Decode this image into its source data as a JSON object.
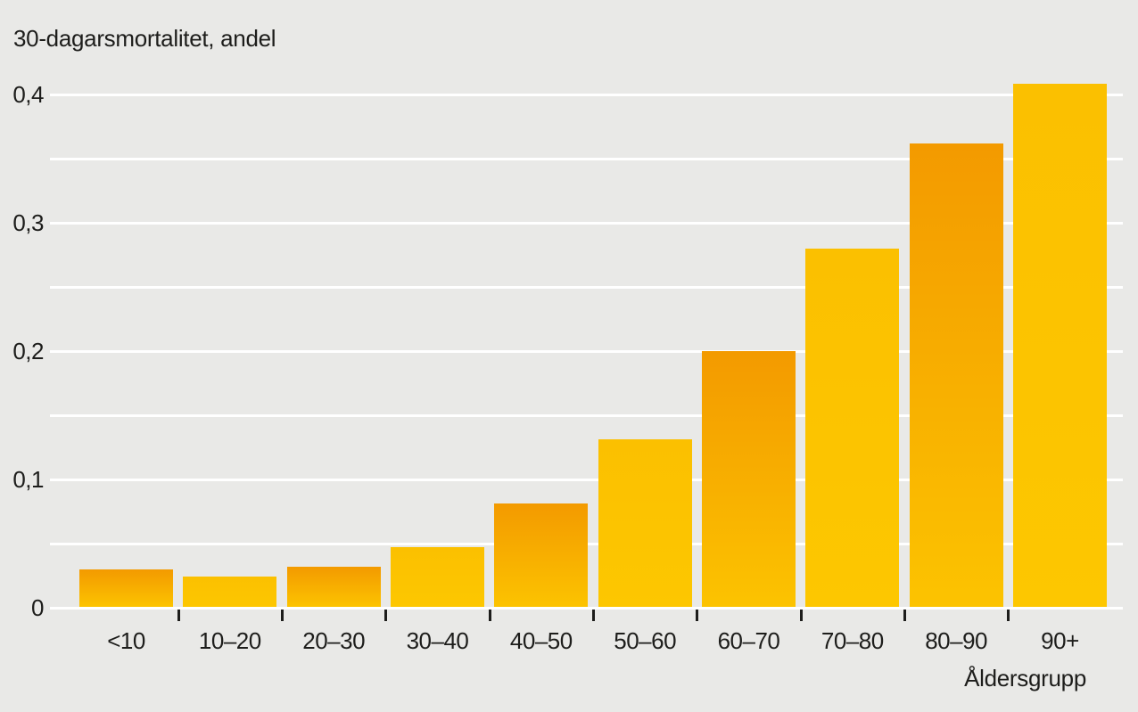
{
  "chart_data": {
    "type": "bar",
    "title": "30-dagarsmortalitet, andel",
    "xlabel": "Åldersgrupp",
    "ylabel": "30-dagarsmortalitet, andel",
    "categories": [
      "<10",
      "10–20",
      "20–30",
      "30–40",
      "40–50",
      "50–60",
      "60–70",
      "70–80",
      "80–90",
      "90+"
    ],
    "values": [
      0.03,
      0.024,
      0.032,
      0.047,
      0.081,
      0.131,
      0.2,
      0.28,
      0.362,
      0.408
    ],
    "bar_styles": [
      "gradient",
      "flat",
      "gradient",
      "flat",
      "gradient",
      "flat",
      "gradient",
      "flat",
      "gradient",
      "flat"
    ],
    "ylim": [
      0,
      0.42
    ],
    "gridlines": [
      0,
      0.05,
      0.1,
      0.15,
      0.2,
      0.25,
      0.3,
      0.35,
      0.4
    ],
    "yticks": [
      {
        "value": 0.0,
        "label": "0"
      },
      {
        "value": 0.1,
        "label": "0,1"
      },
      {
        "value": 0.2,
        "label": "0,2"
      },
      {
        "value": 0.3,
        "label": "0,3"
      },
      {
        "value": 0.4,
        "label": "0,4"
      }
    ],
    "grid": true,
    "legend": false
  },
  "colors": {
    "background": "#e9e9e7",
    "gridline": "#ffffff",
    "text": "#1d1d1b",
    "bar_gradient_top": "#f39a00",
    "bar_gradient_bottom": "#fcc300",
    "bar_flat_top": "#fbc000",
    "bar_flat_bottom": "#fdc700"
  }
}
